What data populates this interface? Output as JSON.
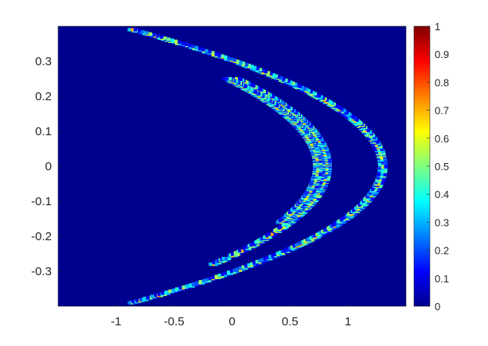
{
  "chart_data": {
    "type": "heatmap",
    "title": "",
    "xlabel": "",
    "ylabel": "",
    "xlim": [
      -1.5,
      1.5
    ],
    "ylim": [
      -0.4,
      0.4
    ],
    "x_ticks": [
      "-1",
      "-0.5",
      "0",
      "0.5",
      "1"
    ],
    "x_tick_values": [
      -1,
      -0.5,
      0,
      0.5,
      1
    ],
    "y_ticks": [
      "0.3",
      "0.2",
      "0.1",
      "0",
      "-0.1",
      "-0.2",
      "-0.3"
    ],
    "y_tick_values": [
      0.3,
      0.2,
      0.1,
      0,
      -0.1,
      -0.2,
      -0.3
    ],
    "colorbar": {
      "range": [
        0,
        1
      ],
      "ticks": [
        "0",
        "0.1",
        "0.2",
        "0.3",
        "0.4",
        "0.5",
        "0.6",
        "0.7",
        "0.8",
        "0.9",
        "1"
      ],
      "tick_values": [
        0,
        0.1,
        0.2,
        0.3,
        0.4,
        0.5,
        0.6,
        0.7,
        0.8,
        0.9,
        1
      ],
      "colormap": "jet"
    },
    "background_value": 0,
    "structure": "Henon-attractor-like folded parabolic bands",
    "bands": [
      {
        "x_vertex": 1.3,
        "curvature": 14.2,
        "y_range": [
          -0.39,
          0.39
        ]
      },
      {
        "x_vertex": 0.82,
        "curvature": 12.5,
        "y_range": [
          -0.28,
          0.25
        ]
      },
      {
        "x_vertex": 0.74,
        "curvature": 12.5,
        "y_range": [
          -0.16,
          0.25
        ]
      }
    ],
    "grid": false
  }
}
